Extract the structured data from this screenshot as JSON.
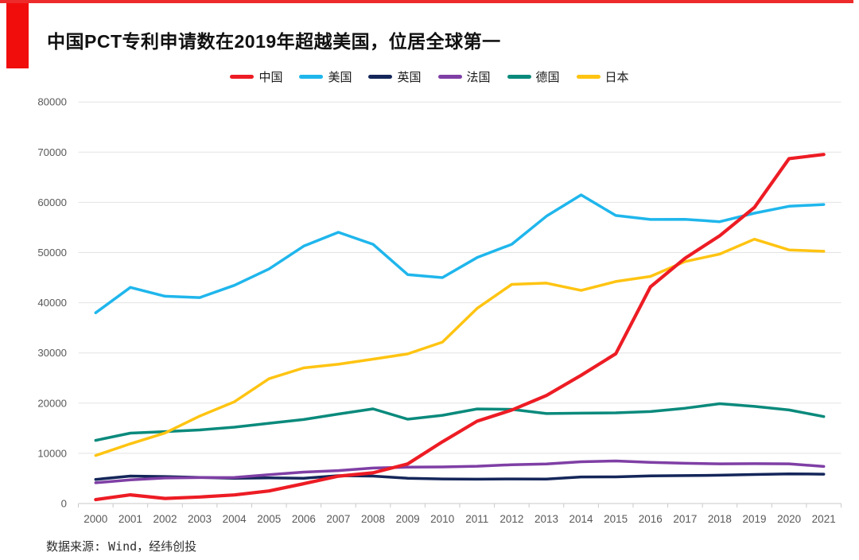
{
  "page": {
    "source": "数据来源: Wind，经纬创投"
  },
  "colors": {
    "accent_red": "#f20d0d",
    "top_line_red": "#ee2b2b",
    "grid": "#e3e3e3",
    "axis": "#c9c9c9",
    "axis_label": "#595959",
    "title_text": "#111111"
  },
  "chart_data": {
    "type": "line",
    "title": "中国PCT专利申请数在2019年超越美国，位居全球第一",
    "xlabel": "",
    "ylabel": "",
    "ylim": [
      0,
      80000
    ],
    "y_ticks": [
      0,
      10000,
      20000,
      30000,
      40000,
      50000,
      60000,
      70000,
      80000
    ],
    "grid": "horizontal",
    "legend_position": "top-center",
    "categories": [
      "2000",
      "2001",
      "2002",
      "2003",
      "2004",
      "2005",
      "2006",
      "2007",
      "2008",
      "2009",
      "2010",
      "2011",
      "2012",
      "2013",
      "2014",
      "2015",
      "2016",
      "2017",
      "2018",
      "2019",
      "2020",
      "2021"
    ],
    "series": [
      {
        "id": "china",
        "name": "中国",
        "color": "#ed1c24",
        "width": 4.2,
        "values": [
          781,
          1731,
          1018,
          1295,
          1706,
          2503,
          3942,
          5455,
          6120,
          7900,
          12296,
          16402,
          18617,
          21516,
          25539,
          29846,
          43168,
          48882,
          53345,
          58990,
          68720,
          69540
        ]
      },
      {
        "id": "usa",
        "name": "美国",
        "color": "#1fb6ec",
        "width": 3.5,
        "values": [
          38007,
          43055,
          41296,
          41028,
          43464,
          46742,
          51280,
          54043,
          51642,
          45618,
          45008,
          48996,
          51642,
          57239,
          61492,
          57385,
          56595,
          56624,
          56142,
          57840,
          59230,
          59570
        ]
      },
      {
        "id": "uk",
        "name": "英国",
        "color": "#14265a",
        "width": 3.5,
        "values": [
          4795,
          5466,
          5376,
          5206,
          5027,
          5097,
          5045,
          5542,
          5466,
          5044,
          4891,
          4844,
          4895,
          4865,
          5287,
          5313,
          5496,
          5567,
          5641,
          5786,
          5912,
          5841
        ]
      },
      {
        "id": "france",
        "name": "法国",
        "color": "#7f3fa5",
        "width": 3.5,
        "values": [
          4138,
          4707,
          5089,
          5171,
          5184,
          5742,
          6256,
          6560,
          7072,
          7237,
          7288,
          7438,
          7739,
          7899,
          8319,
          8476,
          8208,
          8012,
          7914,
          7934,
          7904,
          7380
        ]
      },
      {
        "id": "germany",
        "name": "德国",
        "color": "#0a8a7c",
        "width": 3.5,
        "values": [
          12582,
          14031,
          14326,
          14662,
          15214,
          15985,
          16736,
          17821,
          18855,
          16797,
          17568,
          18851,
          18764,
          17927,
          18008,
          18072,
          18315,
          18982,
          19883,
          19353,
          18643,
          17322
        ]
      },
      {
        "id": "japan",
        "name": "日本",
        "color": "#ffc412",
        "width": 3.5,
        "values": [
          9567,
          11904,
          14063,
          17414,
          20264,
          24869,
          27025,
          27743,
          28760,
          29802,
          32150,
          38874,
          43660,
          43918,
          42459,
          44235,
          45239,
          48208,
          49702,
          52660,
          50520,
          50260
        ]
      }
    ],
    "draw_order": [
      "uk",
      "france",
      "germany",
      "japan",
      "usa",
      "china"
    ]
  }
}
